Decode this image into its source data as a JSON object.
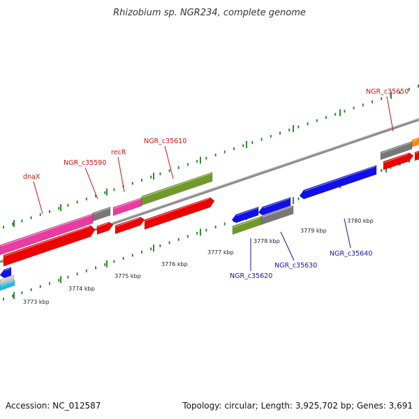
{
  "title": "Rhizobium sp. NGR234, complete genome",
  "footer": {
    "accession": "Accession: NC_012587",
    "summary": "Topology: circular; Length: 3,925,702 bp; Genes: 3,691"
  },
  "colors": {
    "tick": "#2e8b2e",
    "backbone": "#8c8c8c",
    "forward_label": "#cc1111",
    "reverse_label": "#1111aa"
  },
  "scale_ticks": [
    "3773 kbp",
    "3774 kbp",
    "3775 kbp",
    "3776 kbp",
    "3777 kbp",
    "3778 kbp",
    "3779 kbp",
    "3780 kbp"
  ],
  "gene_labels": {
    "forward": [
      "dnaX",
      "NGR_c35590",
      "recR",
      "NGR_c35610",
      "NGR_c35650"
    ],
    "reverse": [
      "NGR_c35620",
      "NGR_c35630",
      "NGR_c35640"
    ]
  }
}
